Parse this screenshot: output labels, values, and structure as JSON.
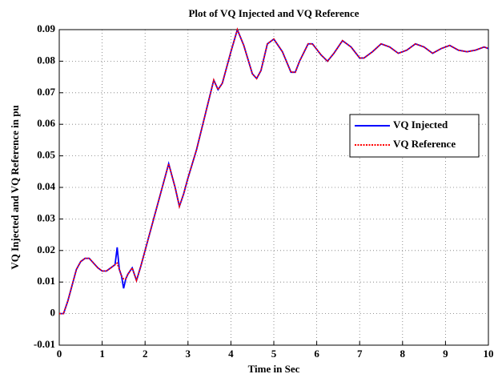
{
  "chart_data": {
    "type": "line",
    "title": "Plot of VQ Injected and VQ Reference",
    "x_label": "Time in Sec",
    "y_label": "VQ Injected and VQ Reference  in pu",
    "x": [
      0,
      0.1,
      0.2,
      0.3,
      0.4,
      0.5,
      0.6,
      0.7,
      0.8,
      0.9,
      1.0,
      1.1,
      1.2,
      1.3,
      1.35,
      1.4,
      1.45,
      1.5,
      1.55,
      1.6,
      1.7,
      1.8,
      1.9,
      2.0,
      2.2,
      2.4,
      2.55,
      2.7,
      2.8,
      2.9,
      3.0,
      3.2,
      3.4,
      3.6,
      3.7,
      3.8,
      4.0,
      4.15,
      4.3,
      4.5,
      4.6,
      4.7,
      4.85,
      5.0,
      5.2,
      5.4,
      5.5,
      5.6,
      5.8,
      5.9,
      6.1,
      6.25,
      6.4,
      6.6,
      6.8,
      7.0,
      7.1,
      7.3,
      7.5,
      7.7,
      7.9,
      8.1,
      8.3,
      8.5,
      8.7,
      8.9,
      9.1,
      9.3,
      9.5,
      9.7,
      9.9,
      10
    ],
    "series": [
      {
        "name": "VQ Injected",
        "color": "#0000ff",
        "linestyle": "solid",
        "values": [
          0,
          0,
          0.004,
          0.009,
          0.014,
          0.0165,
          0.0175,
          0.0175,
          0.016,
          0.0145,
          0.0135,
          0.0135,
          0.0145,
          0.0155,
          0.021,
          0.014,
          0.012,
          0.008,
          0.011,
          0.0125,
          0.0145,
          0.0105,
          0.015,
          0.02,
          0.03,
          0.04,
          0.0475,
          0.04,
          0.034,
          0.038,
          0.043,
          0.052,
          0.063,
          0.074,
          0.071,
          0.073,
          0.083,
          0.09,
          0.085,
          0.076,
          0.0745,
          0.077,
          0.0855,
          0.087,
          0.083,
          0.0765,
          0.0765,
          0.08,
          0.0855,
          0.0855,
          0.082,
          0.08,
          0.0825,
          0.0865,
          0.0845,
          0.081,
          0.081,
          0.083,
          0.0855,
          0.0845,
          0.0825,
          0.0835,
          0.0855,
          0.0845,
          0.0825,
          0.084,
          0.085,
          0.0835,
          0.083,
          0.0835,
          0.0845,
          0.084
        ]
      },
      {
        "name": "VQ Reference",
        "color": "#ff0000",
        "linestyle": "dotted",
        "values": [
          0,
          0,
          0.004,
          0.009,
          0.014,
          0.0165,
          0.0175,
          0.0175,
          0.016,
          0.0145,
          0.0135,
          0.0135,
          0.0145,
          0.0155,
          0.016,
          0.014,
          0.012,
          0.011,
          0.011,
          0.0125,
          0.0145,
          0.0105,
          0.015,
          0.02,
          0.03,
          0.04,
          0.0475,
          0.04,
          0.034,
          0.038,
          0.043,
          0.052,
          0.063,
          0.074,
          0.071,
          0.073,
          0.083,
          0.09,
          0.085,
          0.076,
          0.0745,
          0.077,
          0.0855,
          0.087,
          0.083,
          0.0765,
          0.0765,
          0.08,
          0.0855,
          0.0855,
          0.082,
          0.08,
          0.0825,
          0.0865,
          0.0845,
          0.081,
          0.081,
          0.083,
          0.0855,
          0.0845,
          0.0825,
          0.0835,
          0.0855,
          0.0845,
          0.0825,
          0.084,
          0.085,
          0.0835,
          0.083,
          0.0835,
          0.0845,
          0.084
        ]
      }
    ],
    "xlim": [
      0,
      10
    ],
    "xticks": [
      0,
      1,
      2,
      3,
      4,
      5,
      6,
      7,
      8,
      9,
      10
    ],
    "ylim": [
      -0.01,
      0.09
    ],
    "yticks": [
      -0.01,
      0,
      0.01,
      0.02,
      0.03,
      0.04,
      0.05,
      0.06,
      0.07,
      0.08,
      0.09
    ],
    "grid": true,
    "legend": "right"
  }
}
